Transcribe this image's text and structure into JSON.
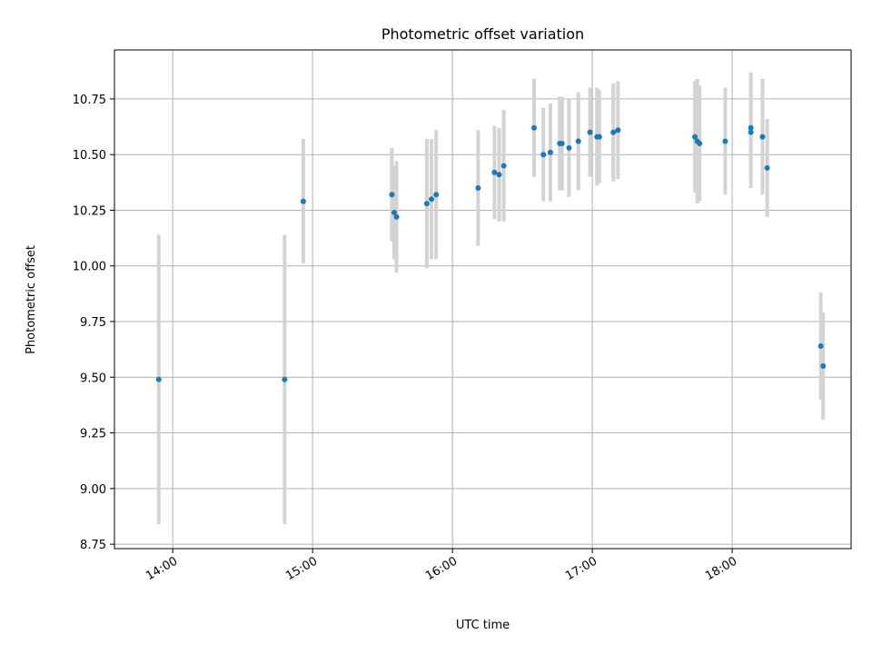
{
  "chart_data": {
    "type": "scatter",
    "title": "Photometric offset variation",
    "xlabel": "UTC time",
    "ylabel": "Photometric offset",
    "x_unit": "time of day (UTC), HH:MM",
    "xlim": [
      "13:35",
      "18:51"
    ],
    "ylim": [
      8.73,
      10.97
    ],
    "x_ticks": [
      "14:00",
      "15:00",
      "16:00",
      "17:00",
      "18:00"
    ],
    "y_ticks": [
      8.75,
      9.0,
      9.25,
      9.5,
      9.75,
      10.0,
      10.25,
      10.5,
      10.75
    ],
    "grid": true,
    "legend": "none",
    "marker_color": "#1f77b4",
    "errorbar_color": "#d3d3d3",
    "points": [
      {
        "x": "13:54",
        "y": 9.49,
        "yerr": 0.65
      },
      {
        "x": "14:48",
        "y": 9.49,
        "yerr": 0.65
      },
      {
        "x": "14:56",
        "y": 10.29,
        "yerr": 0.28
      },
      {
        "x": "15:34",
        "y": 10.32,
        "yerr": 0.21
      },
      {
        "x": "15:35",
        "y": 10.24,
        "yerr": 0.21
      },
      {
        "x": "15:36",
        "y": 10.22,
        "yerr": 0.25
      },
      {
        "x": "15:49",
        "y": 10.28,
        "yerr": 0.29
      },
      {
        "x": "15:51",
        "y": 10.3,
        "yerr": 0.27
      },
      {
        "x": "15:53",
        "y": 10.32,
        "yerr": 0.29
      },
      {
        "x": "16:11",
        "y": 10.35,
        "yerr": 0.26
      },
      {
        "x": "16:18",
        "y": 10.42,
        "yerr": 0.21
      },
      {
        "x": "16:20",
        "y": 10.41,
        "yerr": 0.21
      },
      {
        "x": "16:22",
        "y": 10.45,
        "yerr": 0.25
      },
      {
        "x": "16:35",
        "y": 10.62,
        "yerr": 0.22
      },
      {
        "x": "16:39",
        "y": 10.5,
        "yerr": 0.21
      },
      {
        "x": "16:42",
        "y": 10.51,
        "yerr": 0.22
      },
      {
        "x": "16:46",
        "y": 10.55,
        "yerr": 0.21
      },
      {
        "x": "16:47",
        "y": 10.55,
        "yerr": 0.21
      },
      {
        "x": "16:50",
        "y": 10.53,
        "yerr": 0.22
      },
      {
        "x": "16:54",
        "y": 10.56,
        "yerr": 0.22
      },
      {
        "x": "16:59",
        "y": 10.6,
        "yerr": 0.2
      },
      {
        "x": "17:02",
        "y": 10.58,
        "yerr": 0.22
      },
      {
        "x": "17:03",
        "y": 10.58,
        "yerr": 0.21
      },
      {
        "x": "17:09",
        "y": 10.6,
        "yerr": 0.22
      },
      {
        "x": "17:11",
        "y": 10.61,
        "yerr": 0.22
      },
      {
        "x": "17:44",
        "y": 10.58,
        "yerr": 0.25
      },
      {
        "x": "17:45",
        "y": 10.56,
        "yerr": 0.28
      },
      {
        "x": "17:46",
        "y": 10.55,
        "yerr": 0.26
      },
      {
        "x": "17:57",
        "y": 10.56,
        "yerr": 0.24
      },
      {
        "x": "18:08",
        "y": 10.6,
        "yerr": 0.25
      },
      {
        "x": "18:08",
        "y": 10.62,
        "yerr": 0.25
      },
      {
        "x": "18:13",
        "y": 10.58,
        "yerr": 0.26
      },
      {
        "x": "18:15",
        "y": 10.44,
        "yerr": 0.22
      },
      {
        "x": "18:38",
        "y": 9.64,
        "yerr": 0.24
      },
      {
        "x": "18:39",
        "y": 9.55,
        "yerr": 0.24
      }
    ]
  }
}
